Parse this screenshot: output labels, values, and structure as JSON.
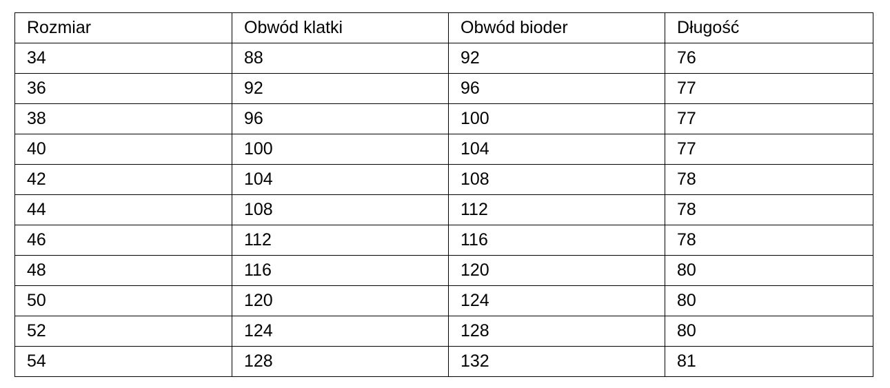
{
  "table": {
    "headers": [
      "Rozmiar",
      "Obwód klatki",
      "Obwód bioder",
      "Długość"
    ],
    "rows": [
      [
        "34",
        "88",
        "92",
        "76"
      ],
      [
        "36",
        "92",
        "96",
        "77"
      ],
      [
        "38",
        "96",
        "100",
        "77"
      ],
      [
        "40",
        "100",
        "104",
        "77"
      ],
      [
        "42",
        "104",
        "108",
        "78"
      ],
      [
        "44",
        "108",
        "112",
        "78"
      ],
      [
        "46",
        "112",
        "116",
        "78"
      ],
      [
        "48",
        "116",
        "120",
        "80"
      ],
      [
        "50",
        "120",
        "124",
        "80"
      ],
      [
        "52",
        "124",
        "128",
        "80"
      ],
      [
        "54",
        "128",
        "132",
        "81"
      ]
    ]
  }
}
